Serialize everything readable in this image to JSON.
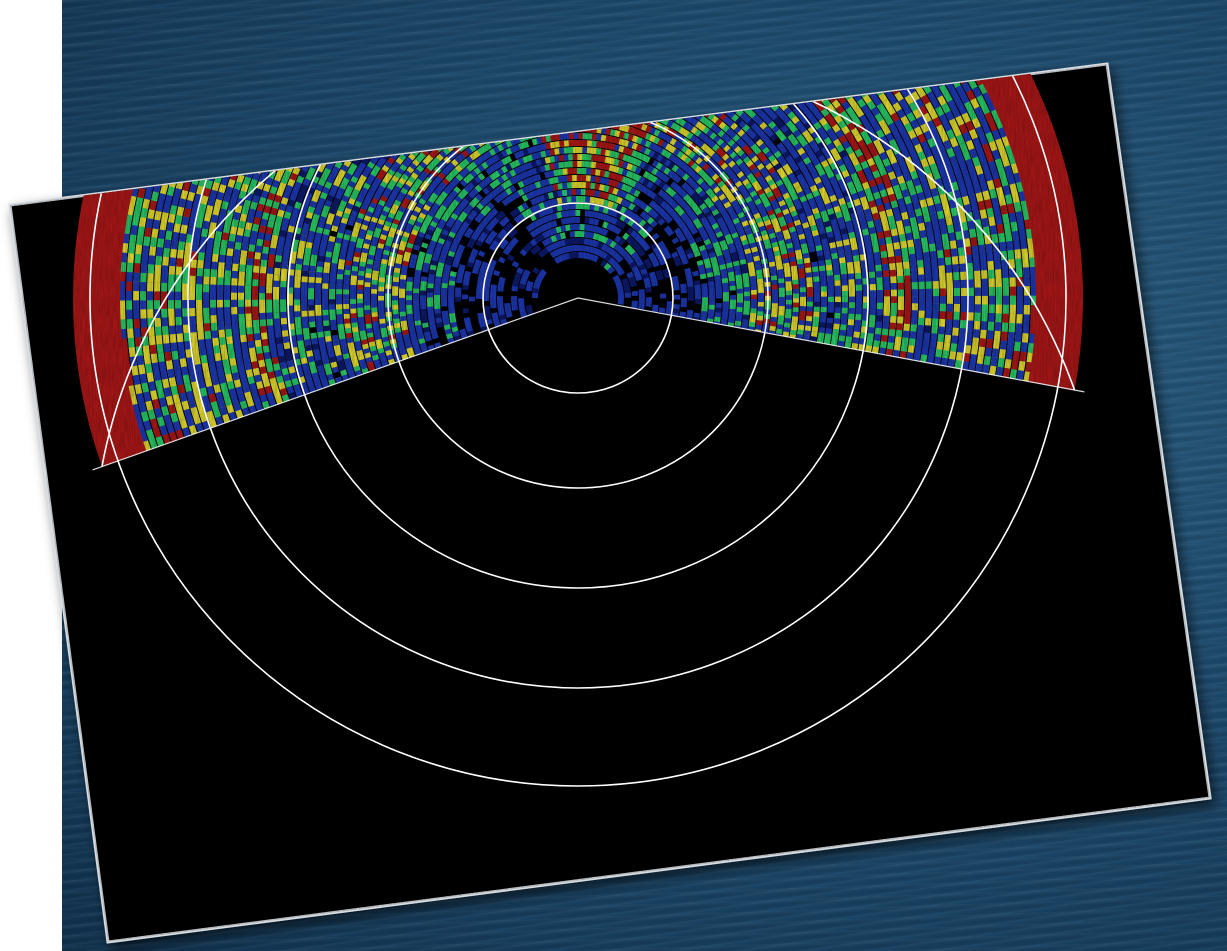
{
  "scene": {
    "background": "ocean-surface",
    "subject": "sonar-display",
    "colors": {
      "ocean": "#1f4d70",
      "display_background": "#000000",
      "frame": "#d8dde2",
      "range_ring": "#ffffff",
      "echo_strong": "#b01818",
      "echo_medium_high": "#e8e030",
      "echo_medium": "#2ad06a",
      "echo_low": "#1e3ab8",
      "echo_weak": "#0d1a6e"
    }
  }
}
